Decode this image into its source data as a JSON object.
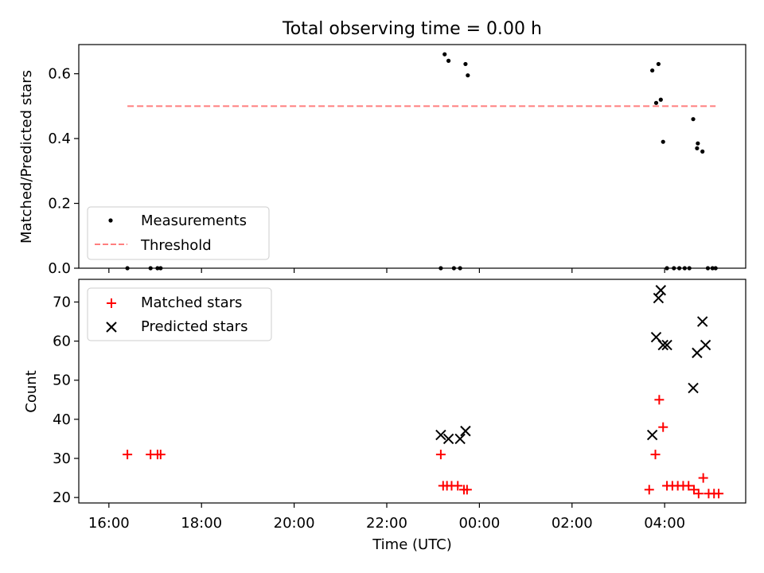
{
  "figure_title": "Total observing time = 0.00 h",
  "chart_data": [
    {
      "type": "scatter",
      "panel": "top",
      "ylabel": "Matched/Predicted stars",
      "xlabel": "",
      "ylim": [
        0,
        0.69
      ],
      "yticks": [
        0.0,
        0.2,
        0.4,
        0.6
      ],
      "ytick_labels": [
        "0.0",
        "0.2",
        "0.4",
        "0.6"
      ],
      "xlim_hours": [
        15.35,
        29.75
      ],
      "x_is_hours_since_midnight_of_first_day": true,
      "legend": {
        "position": "lower-left",
        "entries": [
          "Measurements",
          "Threshold"
        ]
      },
      "series": [
        {
          "name": "Measurements",
          "marker": "dot",
          "color": "#000000",
          "x": [
            "16:24",
            "16:54",
            "17:03",
            "17:07",
            "23:10",
            "23:20",
            "23:27",
            "23:35",
            "23:42",
            "03:44",
            "03:49",
            "03:52",
            "03:55",
            "03:58",
            "04:03",
            "04:12",
            "04:19",
            "04:26",
            "04:32",
            "04:37",
            "04:42",
            "04:43",
            "04:49",
            "04:56",
            "05:02",
            "05:06"
          ],
          "y": [
            0.0,
            0.0,
            0.0,
            0.0,
            0.0,
            0.64,
            0.0,
            0.0,
            0.63,
            0.61,
            0.51,
            0.63,
            0.52,
            0.39,
            0.0,
            0.0,
            0.0,
            0.0,
            0.0,
            0.46,
            0.37,
            0.385,
            0.36,
            0.0,
            0.0,
            0.0
          ]
        },
        {
          "name": "Threshold",
          "line": "dashed",
          "color": "#ff7f7f",
          "x": [
            "16:24",
            "05:06"
          ],
          "y": [
            0.5,
            0.5
          ]
        }
      ],
      "extra_points": {
        "x": [
          "23:15",
          "23:45"
        ],
        "y": [
          0.66,
          0.595
        ]
      }
    },
    {
      "type": "scatter",
      "panel": "bottom",
      "ylabel": "Count",
      "xlabel": "Time (UTC)",
      "ylim": [
        18.6,
        75.8
      ],
      "yticks": [
        20,
        30,
        40,
        50,
        60,
        70
      ],
      "ytick_labels": [
        "20",
        "30",
        "40",
        "50",
        "60",
        "70"
      ],
      "xticks": [
        "16:00",
        "18:00",
        "20:00",
        "22:00",
        "00:00",
        "02:00",
        "04:00"
      ],
      "legend": {
        "position": "top-left",
        "entries": [
          "Matched stars",
          "Predicted stars"
        ]
      },
      "series": [
        {
          "name": "Matched stars",
          "marker": "plus",
          "color": "#ff0000",
          "x": [
            "16:24",
            "16:54",
            "17:03",
            "17:07",
            "23:10",
            "23:13",
            "23:18",
            "23:24",
            "23:32",
            "23:40",
            "23:44",
            "03:40",
            "03:48",
            "03:53",
            "03:58",
            "04:03",
            "04:10",
            "04:17",
            "04:24",
            "04:31",
            "04:38",
            "04:44",
            "04:50",
            "04:57",
            "05:04",
            "05:10"
          ],
          "y": [
            31,
            31,
            31,
            31,
            31,
            23,
            23,
            23,
            23,
            22,
            22,
            22,
            31,
            45,
            38,
            23,
            23,
            23,
            23,
            23,
            22,
            21,
            25,
            21,
            21,
            21
          ]
        },
        {
          "name": "Predicted stars",
          "marker": "x",
          "color": "#000000",
          "x": [
            "23:10",
            "23:20",
            "23:35",
            "23:42",
            "03:44",
            "03:49",
            "03:52",
            "03:55",
            "03:58",
            "04:03",
            "04:37",
            "04:42",
            "04:49",
            "04:53"
          ],
          "y": [
            36,
            35,
            35,
            37,
            36,
            61,
            71,
            73,
            59,
            59,
            48,
            57,
            65,
            59
          ]
        }
      ]
    }
  ]
}
